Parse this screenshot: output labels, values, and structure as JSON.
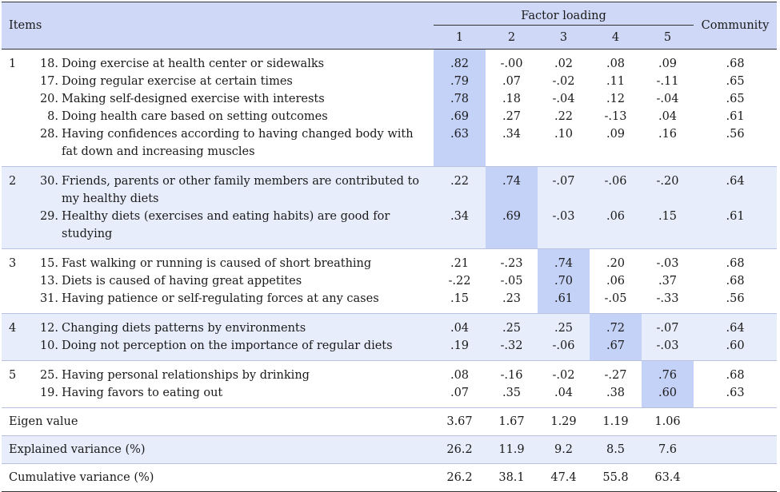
{
  "header": {
    "items": "Items",
    "factor_loading": "Factor loading",
    "community": "Community",
    "factors": [
      "1",
      "2",
      "3",
      "4",
      "5"
    ]
  },
  "groups": [
    {
      "num": "1",
      "rows": [
        {
          "code": "18.",
          "text": "Doing exercise at health center or sidewalks",
          "vals": [
            ".82",
            "-.00",
            ".02",
            ".08",
            ".09"
          ],
          "comm": ".68"
        },
        {
          "code": "17.",
          "text": "Doing regular exercise at certain times",
          "vals": [
            ".79",
            ".07",
            "-.02",
            ".11",
            "-.11"
          ],
          "comm": ".65"
        },
        {
          "code": "20.",
          "text": "Making self-designed exercise with interests",
          "vals": [
            ".78",
            ".18",
            "-.04",
            ".12",
            "-.04"
          ],
          "comm": ".65"
        },
        {
          "code": "8.",
          "text": "Doing health care based on setting outcomes",
          "vals": [
            ".69",
            ".27",
            ".22",
            "-.13",
            ".04"
          ],
          "comm": ".61"
        },
        {
          "code": "28.",
          "text": "Having confidences according to having changed body with",
          "text2": "fat down and increasing muscles",
          "vals": [
            ".63",
            ".34",
            ".10",
            ".09",
            ".16"
          ],
          "comm": ".56"
        }
      ]
    },
    {
      "num": "2",
      "rows": [
        {
          "code": "30.",
          "text": "Friends, parents or other family members are contributed to",
          "text2": "my healthy diets",
          "vals": [
            ".22",
            ".74",
            "-.07",
            "-.06",
            "-.20"
          ],
          "comm": ".64"
        },
        {
          "code": "29.",
          "text": "Healthy diets (exercises and eating habits) are good for",
          "text2": "studying",
          "vals": [
            ".34",
            ".69",
            "-.03",
            ".06",
            ".15"
          ],
          "comm": ".61"
        }
      ]
    },
    {
      "num": "3",
      "rows": [
        {
          "code": "15.",
          "text": "Fast walking or running is caused of short breathing",
          "vals": [
            ".21",
            "-.23",
            ".74",
            ".20",
            "-.03"
          ],
          "comm": ".68"
        },
        {
          "code": "13.",
          "text": "Diets is caused of having great appetites",
          "vals": [
            "-.22",
            "-.05",
            ".70",
            ".06",
            ".37"
          ],
          "comm": ".68"
        },
        {
          "code": "31.",
          "text": "Having patience or self-regulating forces at any cases",
          "vals": [
            ".15",
            ".23",
            ".61",
            "-.05",
            "-.33"
          ],
          "comm": ".56"
        }
      ]
    },
    {
      "num": "4",
      "rows": [
        {
          "code": "12.",
          "text": "Changing diets patterns by environments",
          "vals": [
            ".04",
            ".25",
            ".25",
            ".72",
            "-.07"
          ],
          "comm": ".64"
        },
        {
          "code": "10.",
          "text": "Doing not perception on the importance of regular diets",
          "vals": [
            ".19",
            "-.32",
            "-.06",
            ".67",
            "-.03"
          ],
          "comm": ".60"
        }
      ]
    },
    {
      "num": "5",
      "rows": [
        {
          "code": "25.",
          "text": "Having personal relationships by drinking",
          "vals": [
            ".08",
            "-.16",
            "-.02",
            "-.27",
            ".76"
          ],
          "comm": ".68"
        },
        {
          "code": "19.",
          "text": "Having favors to eating out",
          "vals": [
            ".07",
            ".35",
            ".04",
            ".38",
            ".60"
          ],
          "comm": ".63"
        }
      ]
    }
  ],
  "summary": [
    {
      "label": "Eigen value",
      "vals": [
        "3.67",
        "1.67",
        "1.29",
        "1.19",
        "1.06"
      ]
    },
    {
      "label": "Explained variance (%)",
      "vals": [
        "26.2",
        "11.9",
        "9.2",
        "8.5",
        "7.6"
      ]
    },
    {
      "label": "Cumulative variance (%)",
      "vals": [
        "26.2",
        "38.1",
        "47.4",
        "55.8",
        "63.4"
      ]
    }
  ]
}
